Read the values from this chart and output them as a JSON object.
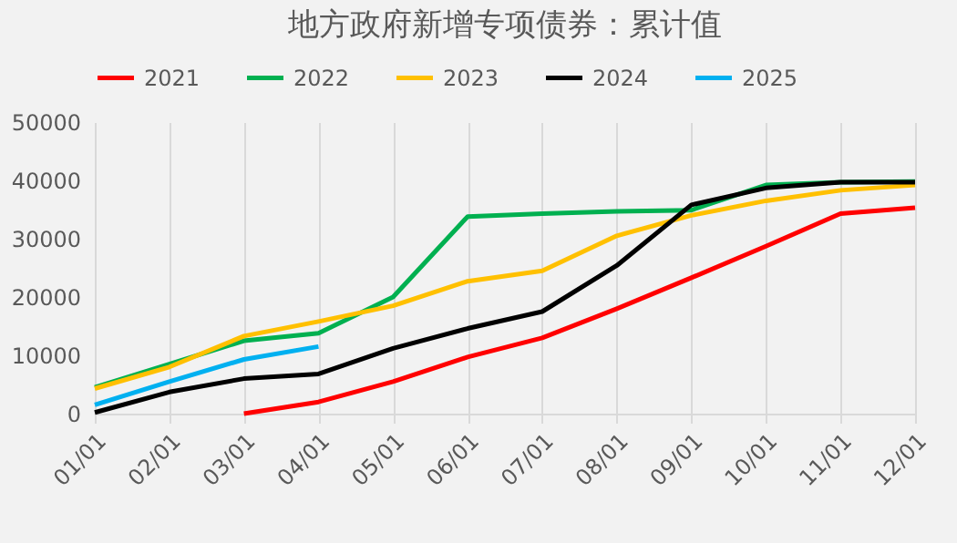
{
  "chart_data": {
    "type": "line",
    "title": "地方政府新增专项债券：累计值",
    "categories": [
      "01/01",
      "02/01",
      "03/01",
      "04/01",
      "05/01",
      "06/01",
      "07/01",
      "08/01",
      "09/01",
      "10/01",
      "11/01",
      "12/01"
    ],
    "series": [
      {
        "name": "2021",
        "color": "#ff0000",
        "values": [
          null,
          null,
          0,
          2000,
          5500,
          9700,
          13000,
          18000,
          23300,
          28700,
          34300,
          35300
        ]
      },
      {
        "name": "2022",
        "color": "#00b050",
        "values": [
          4500,
          8500,
          12500,
          13800,
          20000,
          33800,
          34300,
          34700,
          34900,
          39200,
          39700,
          39800
        ]
      },
      {
        "name": "2023",
        "color": "#ffc000",
        "values": [
          4300,
          8000,
          13300,
          15800,
          18500,
          22700,
          24500,
          30500,
          34000,
          36500,
          38300,
          39200
        ]
      },
      {
        "name": "2024",
        "color": "#000000",
        "values": [
          200,
          3700,
          6000,
          6800,
          11200,
          14600,
          17500,
          25400,
          35800,
          38700,
          39700,
          39700
        ]
      },
      {
        "name": "2025",
        "color": "#00b0f0",
        "values": [
          1500,
          5500,
          9300,
          11500,
          null,
          null,
          null,
          null,
          null,
          null,
          null,
          null
        ]
      }
    ],
    "ylim": [
      0,
      50000
    ],
    "yticks": [
      0,
      10000,
      20000,
      30000,
      40000,
      50000
    ],
    "grid": "x",
    "legend": "top",
    "line_style": "solid",
    "marker": "none"
  }
}
